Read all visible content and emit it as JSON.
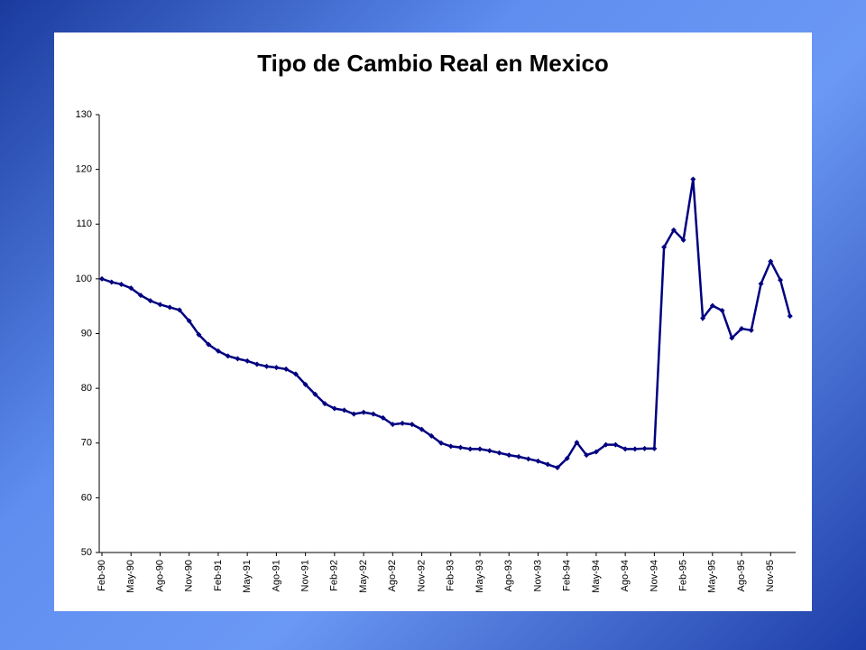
{
  "chart_data": {
    "type": "line",
    "title": "Tipo de Cambio Real en Mexico",
    "categories": [
      "Feb-90",
      null,
      null,
      "May-90",
      null,
      null,
      "Ago-90",
      null,
      null,
      "Nov-90",
      null,
      null,
      "Feb-91",
      null,
      null,
      "May-91",
      null,
      null,
      "Ago-91",
      null,
      null,
      "Nov-91",
      null,
      null,
      "Feb-92",
      null,
      null,
      "May-92",
      null,
      null,
      "Ago-92",
      null,
      null,
      "Nov-92",
      null,
      null,
      "Feb-93",
      null,
      null,
      "May-93",
      null,
      null,
      "Ago-93",
      null,
      null,
      "Nov-93",
      null,
      null,
      "Feb-94",
      null,
      null,
      "May-94",
      null,
      null,
      "Ago-94",
      null,
      null,
      "Nov-94",
      null,
      null,
      "Feb-95",
      null,
      null,
      "May-95",
      null,
      null,
      "Ago-95",
      null,
      null,
      "Nov-95",
      null,
      null
    ],
    "series": [
      {
        "color": "#000080",
        "values": [
          100,
          99.4,
          99,
          98.3,
          97,
          96,
          95.3,
          94.8,
          94.3,
          92.3,
          89.8,
          88,
          86.8,
          85.9,
          85.4,
          85,
          84.4,
          84,
          83.8,
          83.5,
          82.6,
          80.7,
          78.9,
          77.2,
          76.3,
          76,
          75.3,
          75.6,
          75.3,
          74.6,
          73.4,
          73.6,
          73.4,
          72.5,
          71.3,
          70,
          69.4,
          69.2,
          68.9,
          68.9,
          68.6,
          68.2,
          67.8,
          67.5,
          67.1,
          66.7,
          66.1,
          65.5,
          67.2,
          70.1,
          67.8,
          68.4,
          69.7,
          69.7,
          68.9,
          68.9,
          69,
          69,
          105.8,
          108.9,
          107.1,
          118.2,
          92.8,
          95.1,
          94.2,
          89.2,
          90.9,
          90.6,
          99.1,
          103.2,
          99.8,
          93.2
        ]
      }
    ],
    "ylim": [
      50,
      130
    ],
    "yticks": [
      50,
      60,
      70,
      80,
      90,
      100,
      110,
      120,
      130
    ]
  }
}
